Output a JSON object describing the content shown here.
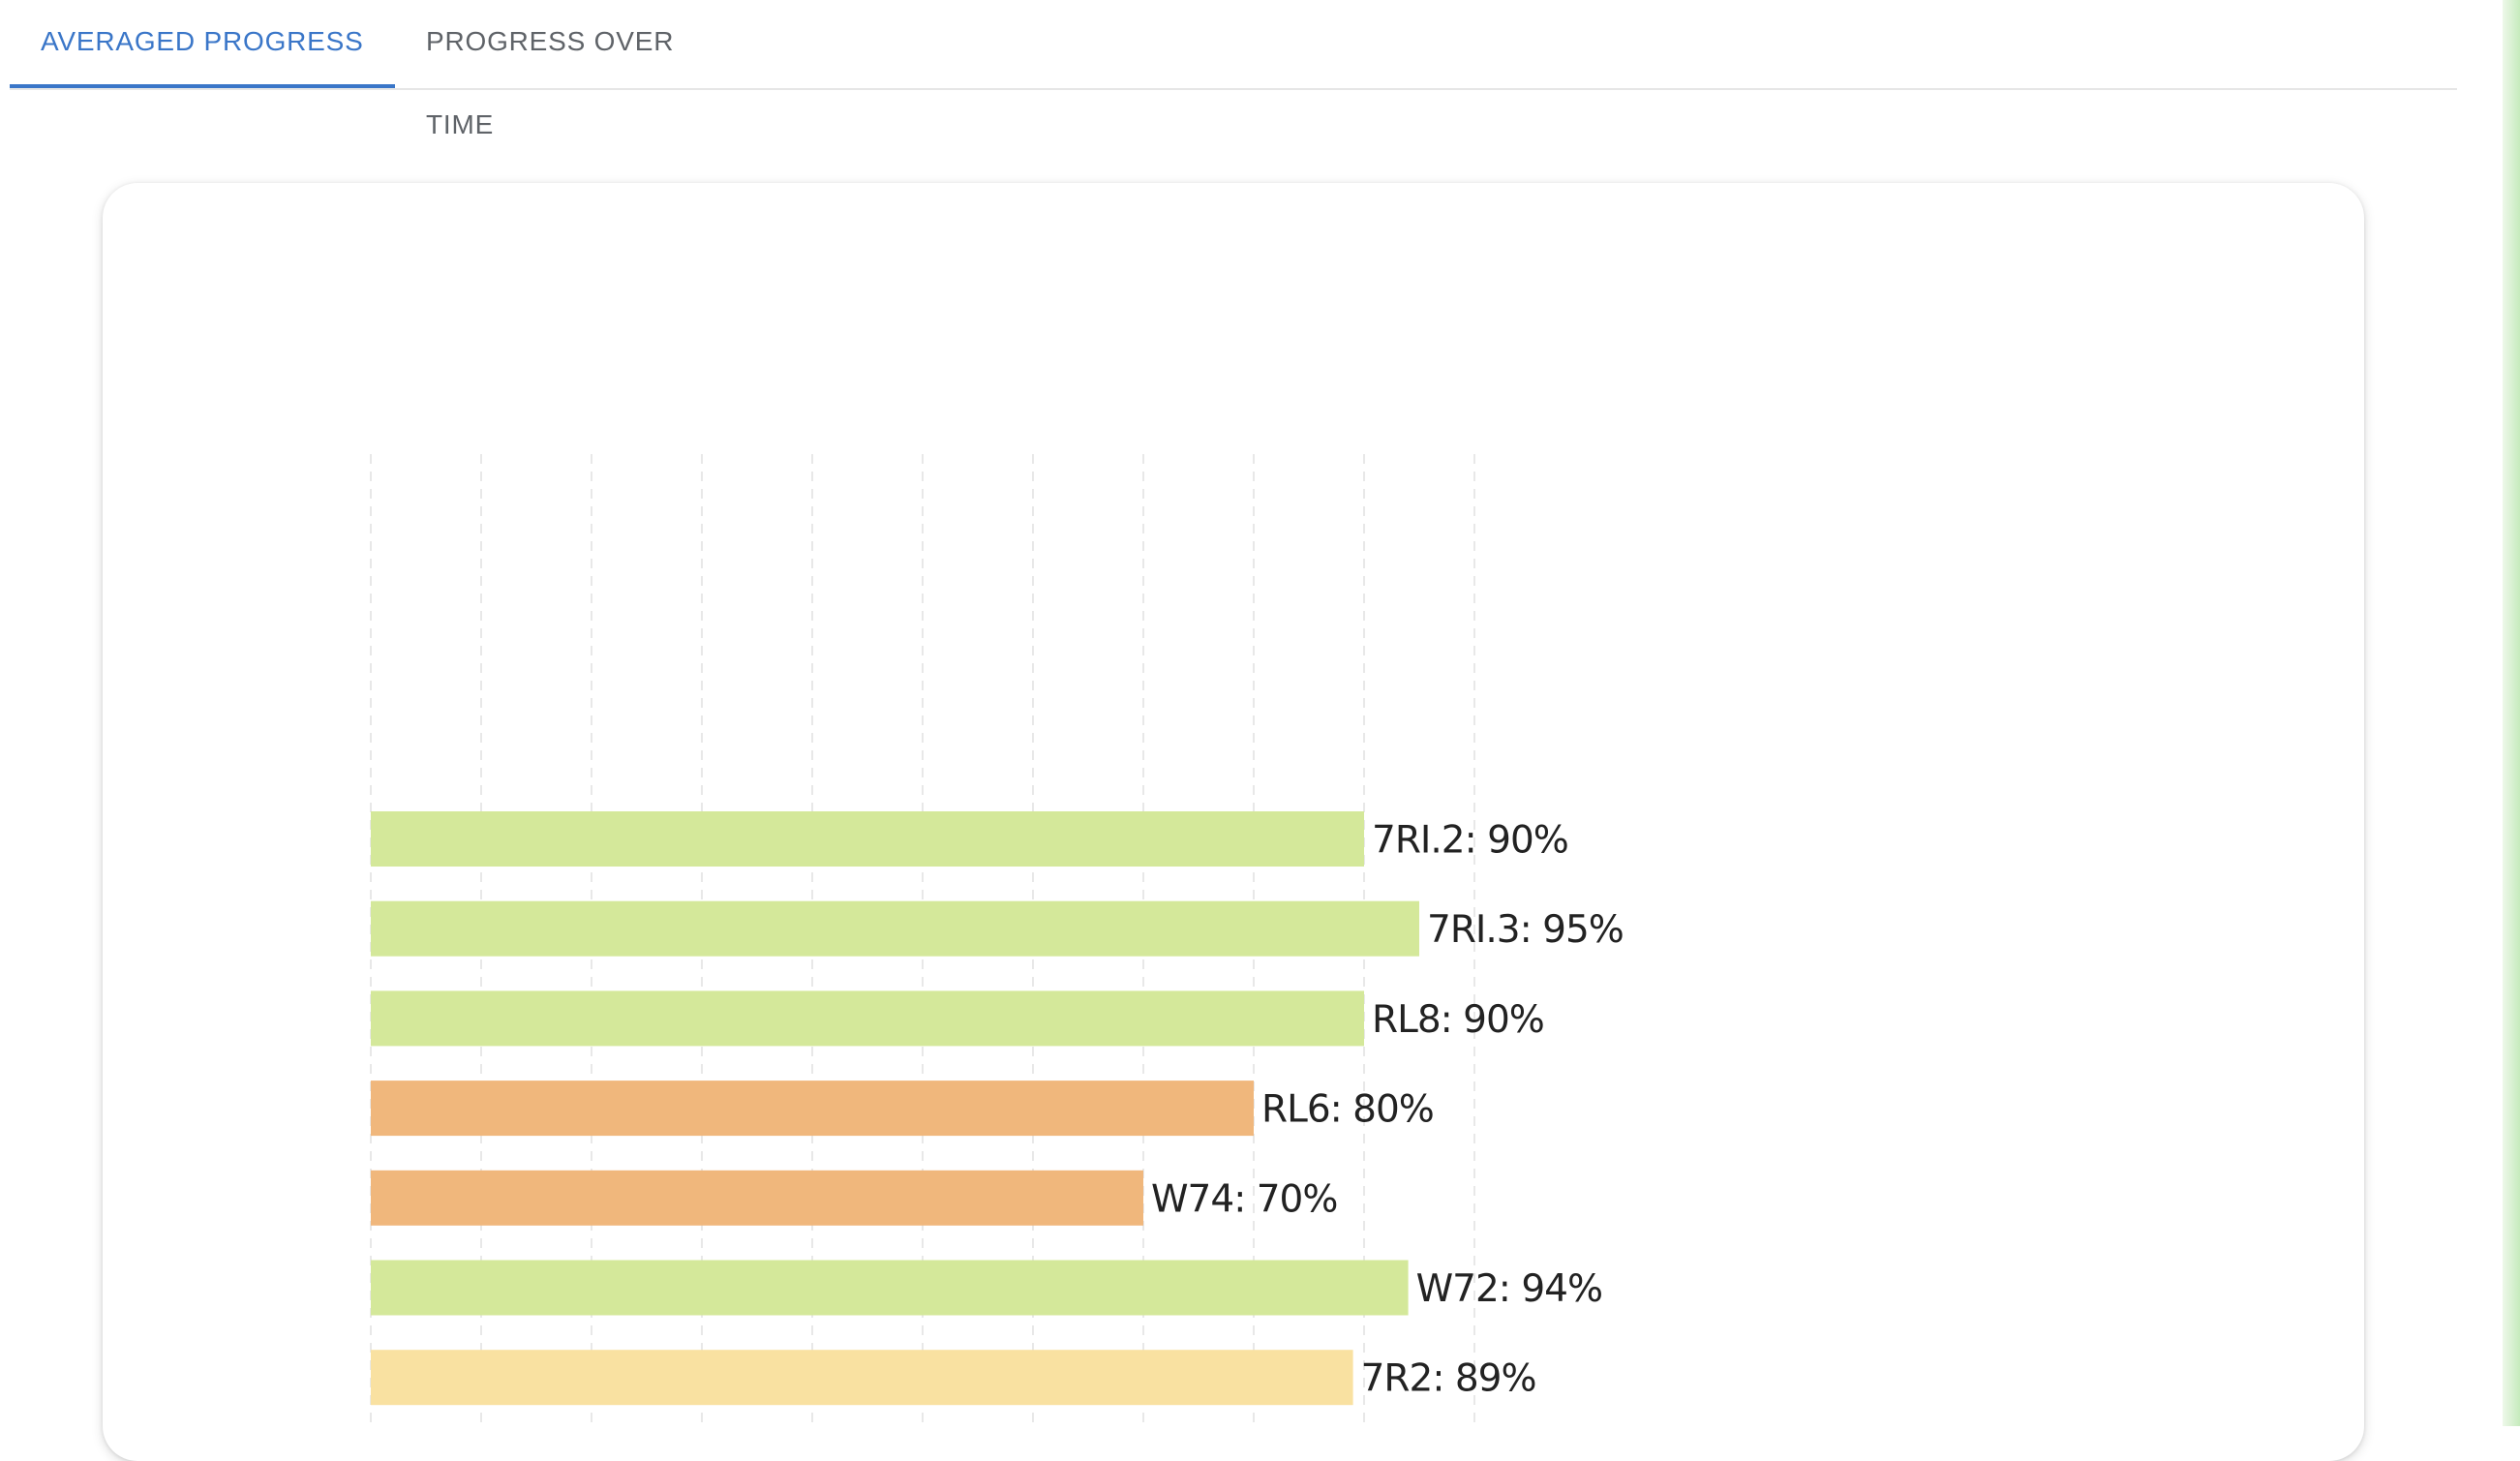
{
  "tabs": [
    {
      "label": "AVERAGED PROGRESS",
      "active": true
    },
    {
      "label": "PROGRESS OVER TIME",
      "active": false
    }
  ],
  "colors": {
    "accent": "#3a76c8",
    "green": "#d4e89a",
    "orange": "#f0b77c",
    "yellow": "#f9e1a1"
  },
  "chart_data": {
    "type": "bar",
    "orientation": "horizontal",
    "xlim": [
      0,
      100
    ],
    "grid": true,
    "bars": [
      {
        "label": "7RI.2: 90%",
        "value": 90,
        "color": "#d4e89a"
      },
      {
        "label": "7RI.3: 95%",
        "value": 95,
        "color": "#d4e89a"
      },
      {
        "label": "RL8: 90%",
        "value": 90,
        "color": "#d4e89a"
      },
      {
        "label": "RL6: 80%",
        "value": 80,
        "color": "#f0b77c"
      },
      {
        "label": "W74: 70%",
        "value": 70,
        "color": "#f0b77c"
      },
      {
        "label": "W72: 94%",
        "value": 94,
        "color": "#d4e89a"
      },
      {
        "label": "7R2: 89%",
        "value": 89,
        "color": "#f9e1a1"
      }
    ]
  }
}
